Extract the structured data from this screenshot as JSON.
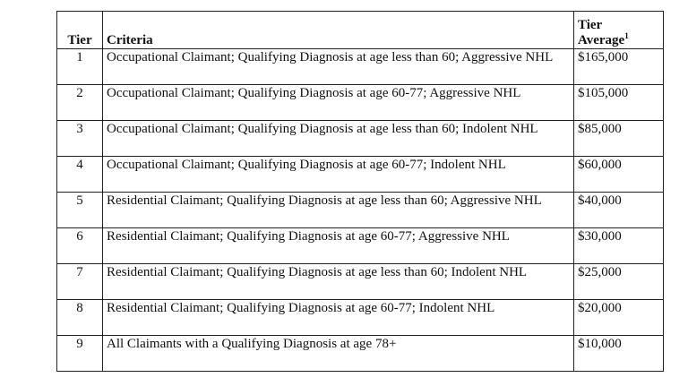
{
  "table": {
    "header": {
      "tier": "Tier",
      "criteria": "Criteria",
      "average_lines": [
        "Tier",
        "Average"
      ],
      "average_note": "1"
    },
    "rows": [
      [
        "1",
        "Occupational Claimant; Qualifying Diagnosis at age less than 60; Aggressive NHL",
        "$165,000"
      ],
      [
        "2",
        "Occupational Claimant; Qualifying Diagnosis at age 60-77; Aggressive NHL",
        "$105,000"
      ],
      [
        "3",
        "Occupational Claimant; Qualifying Diagnosis at age less than 60; Indolent NHL",
        "$85,000"
      ],
      [
        "4",
        "Occupational Claimant; Qualifying Diagnosis at age 60-77; Indolent NHL",
        "$60,000"
      ],
      [
        "5",
        "Residential Claimant; Qualifying Diagnosis at age less than 60; Aggressive NHL",
        "$40,000"
      ],
      [
        "6",
        "Residential Claimant; Qualifying Diagnosis at age 60-77; Aggressive NHL",
        "$30,000"
      ],
      [
        "7",
        "Residential Claimant; Qualifying Diagnosis at age less than 60; Indolent NHL",
        "$25,000"
      ],
      [
        "8",
        "Residential Claimant; Qualifying Diagnosis at age 60-77; Indolent NHL",
        "$20,000"
      ],
      [
        "9",
        "All Claimants with a Qualifying Diagnosis at age 78+",
        "$10,000"
      ]
    ]
  }
}
